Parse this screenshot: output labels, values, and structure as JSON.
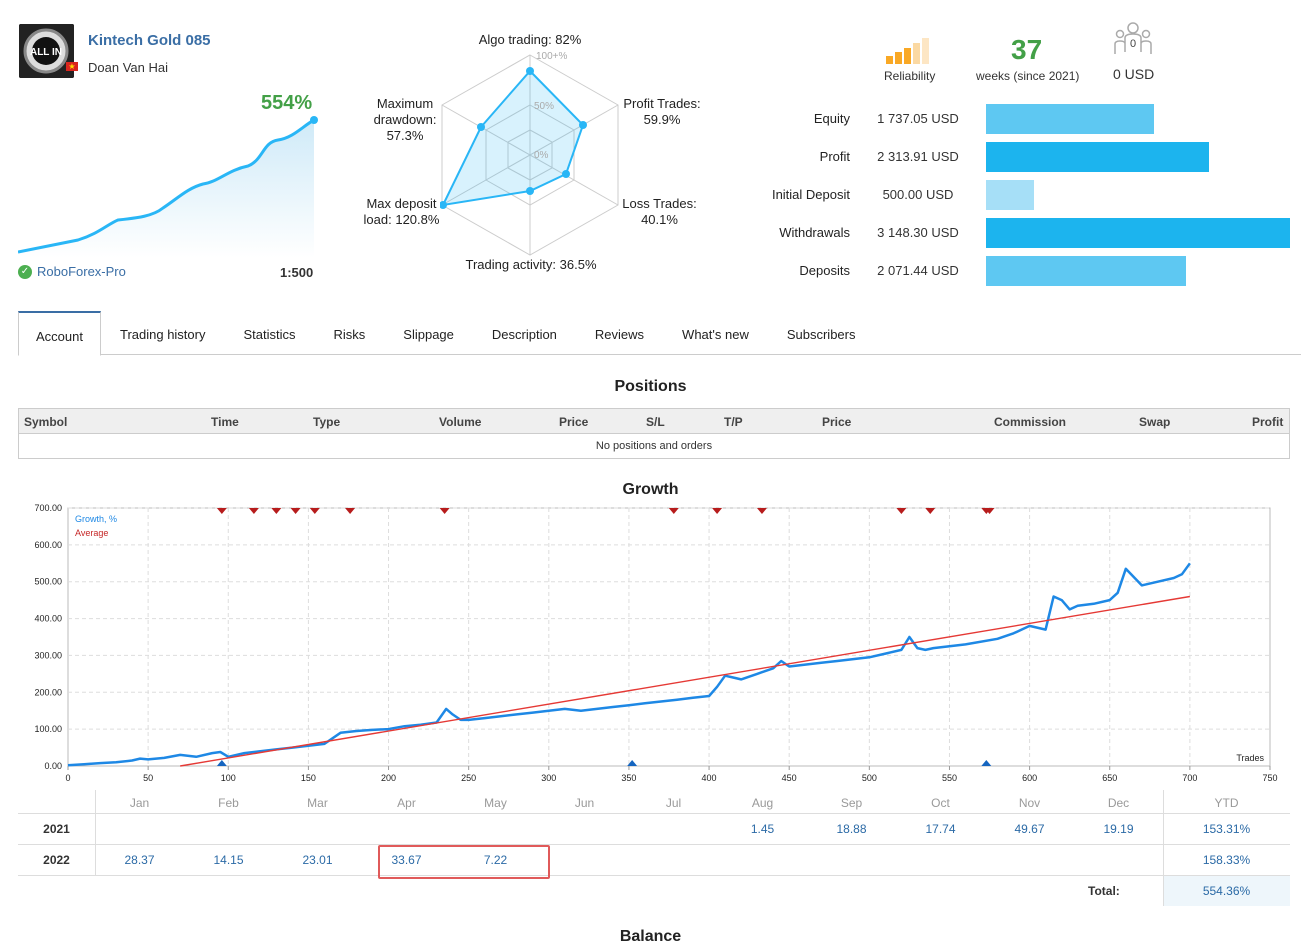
{
  "header": {
    "title": "Kintech Gold 085",
    "author": "Doan Van Hai",
    "avatar_text": "ALL IN",
    "flag_glyph": "★",
    "growth": "554%",
    "broker": "RoboForex-Pro",
    "leverage": "1:500"
  },
  "radar": {
    "labels": {
      "algo": "Algo trading: 82%",
      "profit_trades": [
        "Profit Trades:",
        "59.9%"
      ],
      "loss_trades": [
        "Loss Trades:",
        "40.1%"
      ],
      "activity": "Trading activity: 36.5%",
      "deposit_load": [
        "Max deposit",
        "load: 120.8%"
      ],
      "drawdown": [
        "Maximum",
        "drawdown:",
        "57.3%"
      ]
    },
    "rings": [
      "100+%",
      "50%",
      "0%"
    ],
    "values": [
      82,
      59.9,
      40.1,
      36.5,
      120.8,
      57.3
    ]
  },
  "stats": {
    "reliability": "Reliability",
    "weeks_num": "37",
    "weeks_label": "weeks (since 2021)",
    "subscribers_count": "0",
    "subscribers_amount": "0 USD"
  },
  "financials": [
    {
      "label": "Equity",
      "value": "1 737.05 USD",
      "amount": 1737.05,
      "color": "#5ec8f2"
    },
    {
      "label": "Profit",
      "value": "2 313.91 USD",
      "amount": 2313.91,
      "color": "#1cb4ee"
    },
    {
      "label": "Initial Deposit",
      "value": "500.00 USD",
      "amount": 500.0,
      "color": "#a6dff7"
    },
    {
      "label": "Withdrawals",
      "value": "3 148.30 USD",
      "amount": 3148.3,
      "color": "#1cb4ee"
    },
    {
      "label": "Deposits",
      "value": "2 071.44 USD",
      "amount": 2071.44,
      "color": "#5ec8f2"
    }
  ],
  "tabs": [
    "Account",
    "Trading history",
    "Statistics",
    "Risks",
    "Slippage",
    "Description",
    "Reviews",
    "What's new",
    "Subscribers"
  ],
  "positions": {
    "title": "Positions",
    "columns": [
      "Symbol",
      "Time",
      "Type",
      "Volume",
      "Price",
      "S/L",
      "T/P",
      "Price",
      "Commission",
      "Swap",
      "Profit"
    ],
    "empty": "No positions and orders"
  },
  "growth": {
    "title": "Growth",
    "legend": [
      "Growth, %",
      "Average"
    ],
    "x_axis_label": "Trades",
    "y_ticks": [
      "700.00",
      "600.00",
      "500.00",
      "400.00",
      "300.00",
      "200.00",
      "100.00",
      "0.00"
    ],
    "x_ticks": [
      "0",
      "50",
      "100",
      "150",
      "200",
      "250",
      "300",
      "350",
      "400",
      "450",
      "500",
      "550",
      "600",
      "650",
      "700",
      "750"
    ]
  },
  "chart_data": {
    "type": "line",
    "xlabel": "Trades",
    "ylabel": "",
    "xlim": [
      0,
      750
    ],
    "ylim": [
      0,
      700
    ],
    "grid": true,
    "legend_position": "top-left",
    "series": [
      {
        "name": "Growth, %",
        "color": "#1e88e5",
        "x": [
          0,
          10,
          20,
          30,
          40,
          45,
          50,
          60,
          70,
          80,
          90,
          95,
          100,
          110,
          120,
          130,
          140,
          150,
          160,
          170,
          180,
          190,
          200,
          210,
          220,
          230,
          236,
          240,
          245,
          250,
          260,
          270,
          280,
          290,
          300,
          310,
          320,
          330,
          340,
          350,
          360,
          370,
          380,
          390,
          400,
          405,
          410,
          415,
          420,
          430,
          440,
          445,
          450,
          460,
          470,
          480,
          490,
          500,
          510,
          520,
          525,
          530,
          535,
          540,
          560,
          580,
          590,
          600,
          610,
          615,
          620,
          625,
          630,
          640,
          650,
          655,
          660,
          670,
          680,
          690,
          695,
          700
        ],
        "y": [
          2,
          5,
          8,
          10,
          15,
          20,
          18,
          22,
          30,
          25,
          35,
          38,
          25,
          35,
          40,
          45,
          50,
          55,
          60,
          90,
          95,
          98,
          100,
          108,
          112,
          118,
          155,
          140,
          125,
          125,
          130,
          135,
          140,
          145,
          150,
          155,
          150,
          155,
          160,
          165,
          170,
          175,
          180,
          185,
          190,
          215,
          245,
          240,
          235,
          250,
          265,
          285,
          270,
          275,
          280,
          285,
          290,
          295,
          305,
          315,
          350,
          320,
          315,
          320,
          330,
          345,
          360,
          380,
          370,
          460,
          450,
          425,
          435,
          440,
          450,
          470,
          535,
          490,
          500,
          510,
          520,
          550
        ]
      },
      {
        "name": "Average",
        "color": "#e53935",
        "x": [
          70,
          700
        ],
        "y": [
          0,
          460
        ]
      }
    ],
    "drawdown_markers_x": [
      96,
      116,
      130,
      142,
      154,
      176,
      235,
      378,
      405,
      433,
      520,
      538,
      573,
      575
    ],
    "deposit_markers_x": [
      96,
      352,
      573
    ]
  },
  "monthly": {
    "months": [
      "Jan",
      "Feb",
      "Mar",
      "Apr",
      "May",
      "Jun",
      "Jul",
      "Aug",
      "Sep",
      "Oct",
      "Nov",
      "Dec"
    ],
    "ytd_header": "YTD",
    "rows": [
      {
        "year": "2021",
        "values": [
          "",
          "",
          "",
          "",
          "",
          "",
          "",
          "1.45",
          "18.88",
          "17.74",
          "49.67",
          "19.19"
        ],
        "ytd": "153.31%"
      },
      {
        "year": "2022",
        "values": [
          "28.37",
          "14.15",
          "23.01",
          "33.67",
          "7.22",
          "",
          "",
          "",
          "",
          "",
          "",
          ""
        ],
        "ytd": "158.33%"
      }
    ],
    "total_label": "Total:",
    "total_value": "554.36%"
  },
  "balance": {
    "title": "Balance"
  }
}
